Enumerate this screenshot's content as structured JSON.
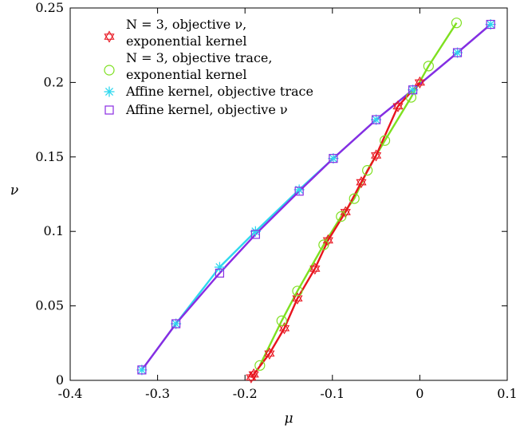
{
  "chart_data": {
    "type": "scatter",
    "xlabel": "μ",
    "ylabel": "ν",
    "xlim": [
      -0.4,
      0.1
    ],
    "ylim": [
      0,
      0.25
    ],
    "x_ticks": [
      -0.4,
      -0.3,
      -0.2,
      -0.1,
      0,
      0.1
    ],
    "x_tick_labels": [
      "-0.4",
      "-0.3",
      "-0.2",
      "-0.1",
      "0",
      "0.1"
    ],
    "y_ticks": [
      0,
      0.05,
      0.1,
      0.15,
      0.2,
      0.25
    ],
    "y_tick_labels": [
      "0",
      "0.05",
      "0.1",
      "0.15",
      "0.2",
      "0.25"
    ],
    "grid": false,
    "legend_position": "top-left",
    "series": [
      {
        "name": "N = 3, objective ν, exponential kernel",
        "legend_lines": [
          "N = 3, objective ν,",
          "exponential kernel"
        ],
        "marker": "hexagram",
        "color": "#e8141e",
        "line_color": "#e8141e",
        "x": [
          -0.193,
          -0.19,
          -0.172,
          -0.155,
          -0.14,
          -0.12,
          -0.105,
          -0.085,
          -0.067,
          -0.05,
          -0.025,
          0.0
        ],
        "y": [
          0.002,
          0.004,
          0.018,
          0.035,
          0.055,
          0.075,
          0.094,
          0.113,
          0.133,
          0.151,
          0.184,
          0.2
        ]
      },
      {
        "name": "N = 3, objective trace, exponential kernel",
        "legend_lines": [
          "N = 3, objective trace,",
          "exponential kernel"
        ],
        "marker": "circle",
        "color": "#7ee020",
        "line_color": "#7ee020",
        "x": [
          -0.183,
          -0.158,
          -0.14,
          -0.11,
          -0.09,
          -0.075,
          -0.06,
          -0.04,
          -0.01,
          0.01,
          0.042
        ],
        "y": [
          0.01,
          0.04,
          0.06,
          0.091,
          0.11,
          0.122,
          0.141,
          0.161,
          0.19,
          0.211,
          0.24
        ]
      },
      {
        "name": "Affine kernel, objective trace",
        "legend_lines": [
          "Affine kernel, objective trace"
        ],
        "marker": "asterisk",
        "color": "#2ed8ee",
        "line_color": "#2ed8ee",
        "x": [
          -0.318,
          -0.279,
          -0.229,
          -0.188,
          -0.138,
          -0.099,
          -0.05,
          -0.008,
          0.043,
          0.081
        ],
        "y": [
          0.007,
          0.038,
          0.076,
          0.1,
          0.128,
          0.149,
          0.175,
          0.195,
          0.22,
          0.239
        ]
      },
      {
        "name": "Affine kernel, objective ν",
        "legend_lines": [
          "Affine kernel, objective ν"
        ],
        "marker": "square",
        "color": "#8a2be2",
        "line_color": "#8a2be2",
        "x": [
          -0.318,
          -0.279,
          -0.229,
          -0.188,
          -0.138,
          -0.099,
          -0.05,
          -0.008,
          0.043,
          0.081
        ],
        "y": [
          0.007,
          0.038,
          0.072,
          0.098,
          0.127,
          0.149,
          0.175,
          0.195,
          0.22,
          0.239
        ]
      }
    ]
  }
}
